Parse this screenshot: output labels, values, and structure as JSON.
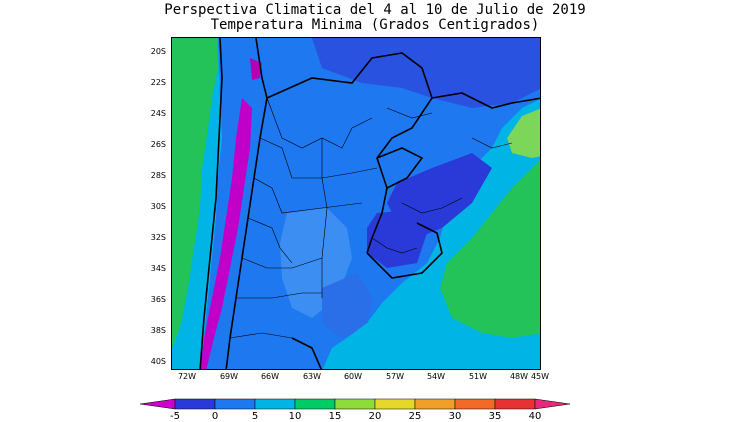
{
  "title": {
    "line1": "Perspectiva Climatica del 4 al 10 de Julio de 2019",
    "line2": "Temperatura Minima (Grados Centigrados)"
  },
  "map": {
    "region": "Argentina",
    "lat_labels": [
      "20S",
      "22S",
      "24S",
      "26S",
      "28S",
      "30S",
      "32S",
      "34S",
      "36S",
      "38S",
      "40S"
    ],
    "lon_labels": [
      "72W",
      "69W",
      "66W",
      "63W",
      "60W",
      "57W",
      "54W",
      "51W",
      "48W",
      "45W"
    ]
  },
  "colorbar": {
    "labels": [
      "-5",
      "0",
      "5",
      "10",
      "15",
      "20",
      "25",
      "30",
      "35",
      "40"
    ],
    "colors": [
      "#cc00cc",
      "#2a3ad8",
      "#1e78f0",
      "#00b4e6",
      "#00cc66",
      "#8ddc3c",
      "#e6d82a",
      "#f0a028",
      "#f06a28",
      "#e63232",
      "#e8287a"
    ]
  }
}
